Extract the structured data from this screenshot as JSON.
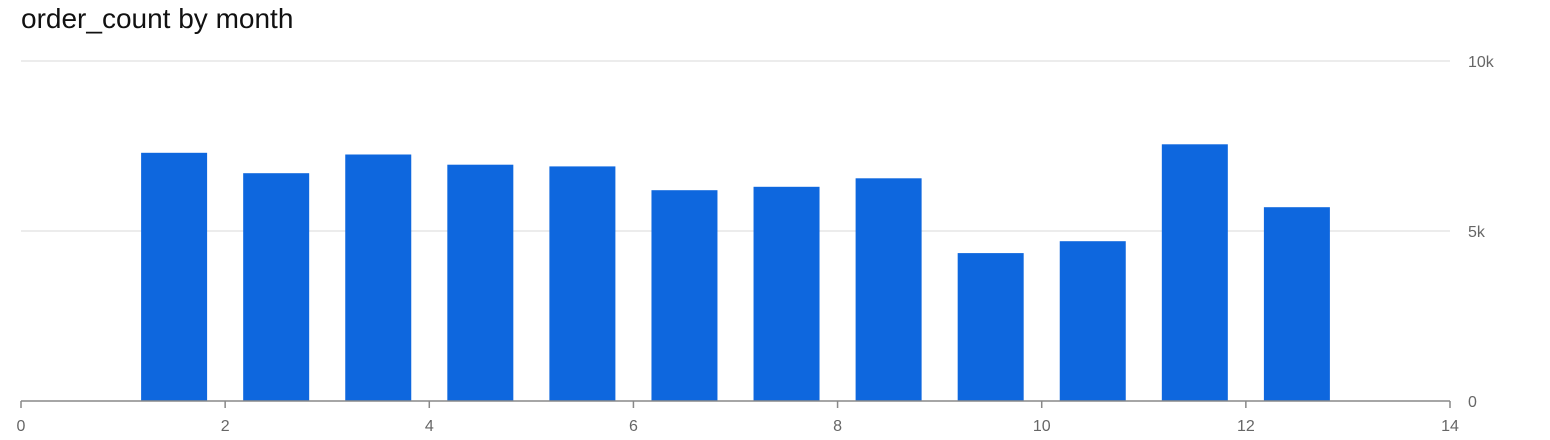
{
  "chart_data": {
    "type": "bar",
    "title": "order_count by month",
    "xlabel": "",
    "ylabel": "",
    "x": [
      1.5,
      2.5,
      3.5,
      4.5,
      5.5,
      6.5,
      7.5,
      8.5,
      9.5,
      10.5,
      11.5,
      12.5
    ],
    "values": [
      7300,
      6700,
      7250,
      6950,
      6900,
      6200,
      6300,
      6550,
      4350,
      4700,
      7550,
      5700
    ],
    "xlim": [
      0,
      14
    ],
    "ylim": [
      0,
      10000
    ],
    "xticks": [
      0,
      2,
      4,
      6,
      8,
      10,
      12,
      14
    ],
    "xtick_labels": [
      "0",
      "2",
      "4",
      "6",
      "8",
      "10",
      "12",
      "14"
    ],
    "yticks": [
      0,
      5000,
      10000
    ],
    "ytick_labels": [
      "0",
      "5k",
      "10k"
    ],
    "y_axis_position": "right",
    "grid": true,
    "legend": "none",
    "bar_color": "#0e67de",
    "grid_color": "#d9d9d9",
    "axis_color": "#888888",
    "tick_color": "#666666"
  }
}
